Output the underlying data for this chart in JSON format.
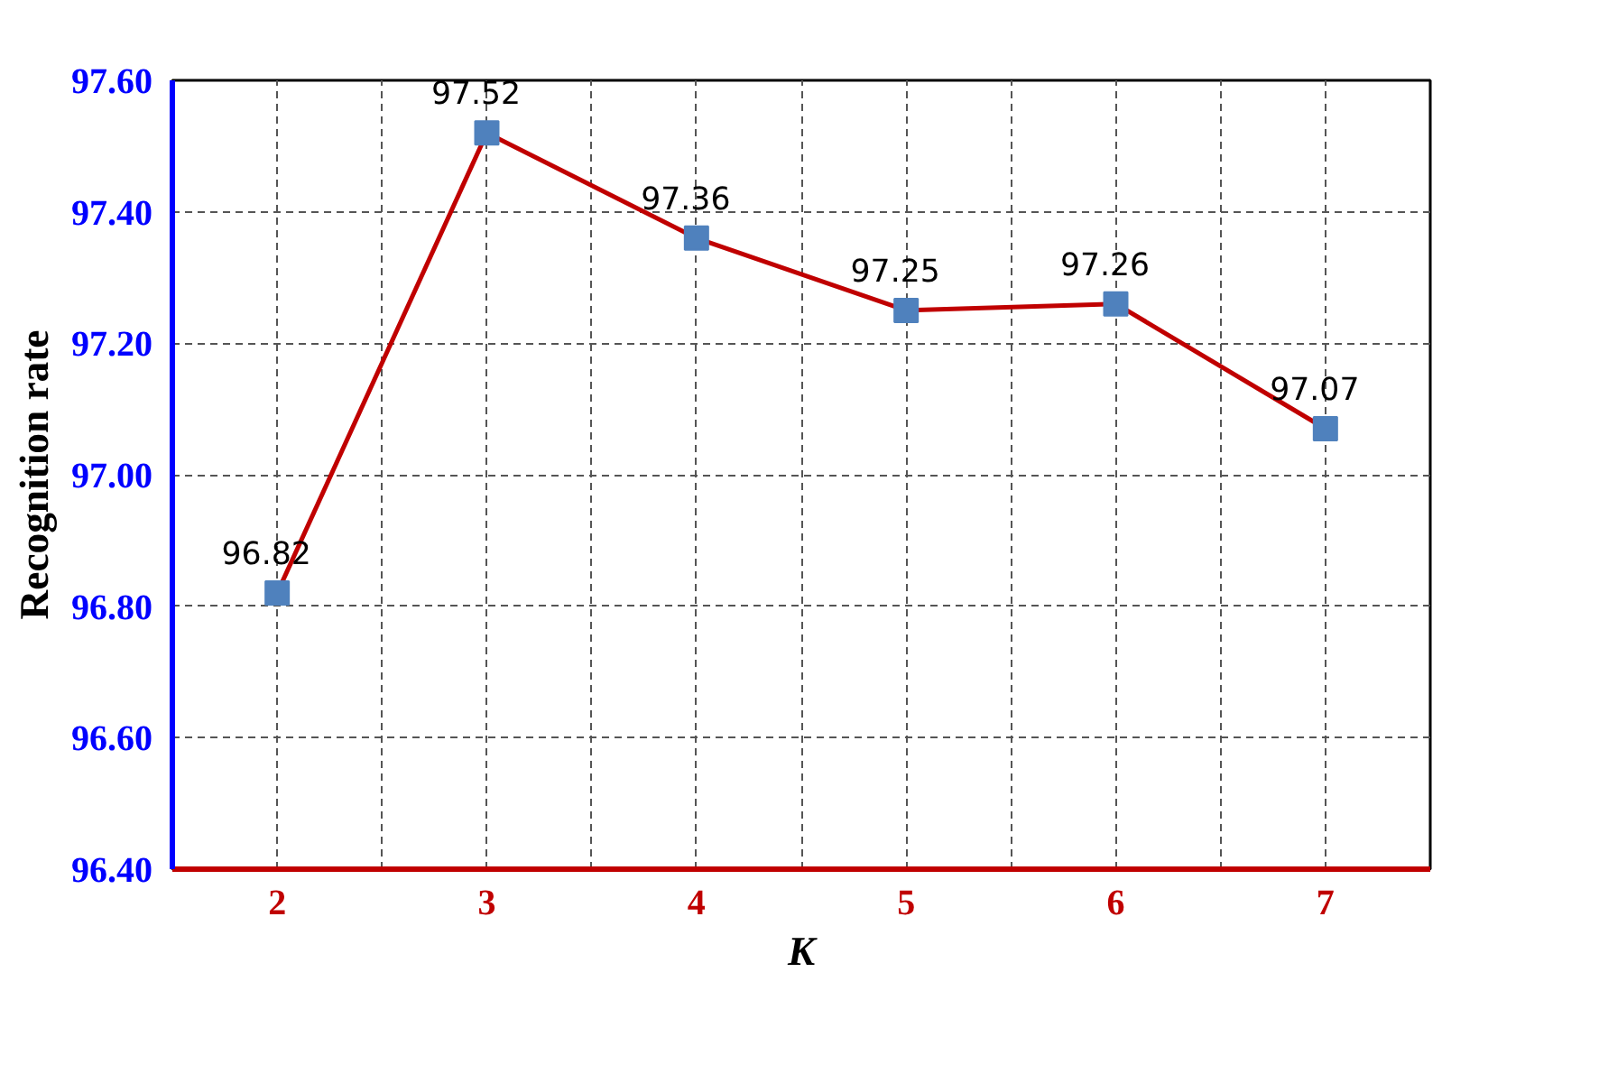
{
  "chart_data": {
    "type": "line",
    "xlabel": "K",
    "ylabel": "Recognition rate",
    "categories": [
      "2",
      "3",
      "4",
      "5",
      "6",
      "7"
    ],
    "series": [
      {
        "color": "#c00000",
        "values": [
          96.82,
          97.52,
          97.36,
          97.25,
          97.26,
          97.07
        ]
      }
    ],
    "ylim": [
      96.4,
      97.6
    ],
    "yticks": [
      {
        "value": 96.4,
        "label": "96.40"
      },
      {
        "value": 96.6,
        "label": "96.60"
      },
      {
        "value": 96.8,
        "label": "96.80"
      },
      {
        "value": 97.0,
        "label": "97.00"
      },
      {
        "value": 97.2,
        "label": "97.20"
      },
      {
        "value": 97.4,
        "label": "97.40"
      },
      {
        "value": 97.6,
        "label": "97.60"
      }
    ],
    "grid": true,
    "marker": "square",
    "line_style": "solid",
    "data_labels": true
  }
}
